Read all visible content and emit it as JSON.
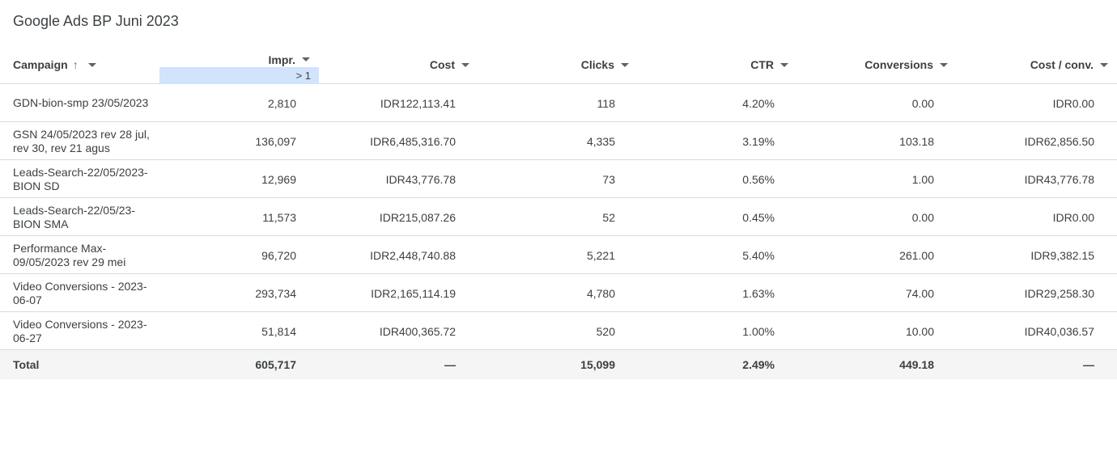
{
  "report": {
    "title": "Google Ads BP Juni 2023"
  },
  "table": {
    "headers": {
      "campaign": "Campaign",
      "campaign_sort_icon": "arrow-upward-icon",
      "impr": "Impr.",
      "cost": "Cost",
      "clicks": "Clicks",
      "ctr": "CTR",
      "conversions": "Conversions",
      "cost_per_conv": "Cost / conv."
    },
    "impr_filter": "> 1",
    "rows": [
      {
        "campaign": "GDN-bion-smp 23/05/2023",
        "impr": "2,810",
        "cost": "IDR122,113.41",
        "clicks": "118",
        "ctr": "4.20%",
        "conversions": "0.00",
        "cost_per_conv": "IDR0.00"
      },
      {
        "campaign": "GSN 24/05/2023 rev 28 jul, rev 30, rev 21 agus",
        "impr": "136,097",
        "cost": "IDR6,485,316.70",
        "clicks": "4,335",
        "ctr": "3.19%",
        "conversions": "103.18",
        "cost_per_conv": "IDR62,856.50"
      },
      {
        "campaign": "Leads-Search-22/05/2023-BION SD",
        "impr": "12,969",
        "cost": "IDR43,776.78",
        "clicks": "73",
        "ctr": "0.56%",
        "conversions": "1.00",
        "cost_per_conv": "IDR43,776.78"
      },
      {
        "campaign": "Leads-Search-22/05/23-BION SMA",
        "impr": "11,573",
        "cost": "IDR215,087.26",
        "clicks": "52",
        "ctr": "0.45%",
        "conversions": "0.00",
        "cost_per_conv": "IDR0.00"
      },
      {
        "campaign": "Performance Max-09/05/2023 rev 29 mei",
        "impr": "96,720",
        "cost": "IDR2,448,740.88",
        "clicks": "5,221",
        "ctr": "5.40%",
        "conversions": "261.00",
        "cost_per_conv": "IDR9,382.15"
      },
      {
        "campaign": "Video Conversions - 2023-06-07",
        "impr": "293,734",
        "cost": "IDR2,165,114.19",
        "clicks": "4,780",
        "ctr": "1.63%",
        "conversions": "74.00",
        "cost_per_conv": "IDR29,258.30"
      },
      {
        "campaign": "Video Conversions - 2023-06-27",
        "impr": "51,814",
        "cost": "IDR400,365.72",
        "clicks": "520",
        "ctr": "1.00%",
        "conversions": "10.00",
        "cost_per_conv": "IDR40,036.57"
      }
    ],
    "total": {
      "campaign": "Total",
      "impr": "605,717",
      "cost": "—",
      "clicks": "15,099",
      "ctr": "2.49%",
      "conversions": "449.18",
      "cost_per_conv": "—"
    }
  }
}
